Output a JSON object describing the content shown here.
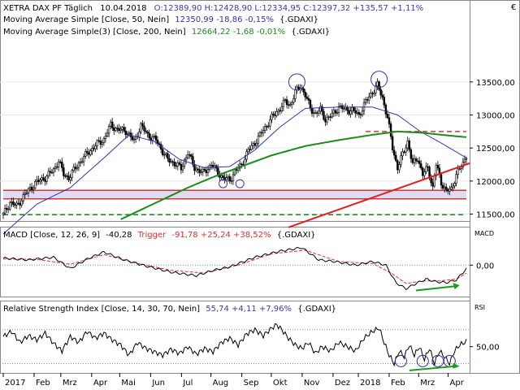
{
  "chart_data": [
    {
      "type": "candlestick",
      "panel": "price",
      "header": {
        "title": "XETRA DAX PF Täglich",
        "date": "10.04.2018",
        "ohlc": "O:12389,90 H:12428,90 L:12334,95 C:12397,32 +135,57 +1,11%"
      },
      "indicators": [
        {
          "label": "Moving Average Simple [Close, 50, Nein]",
          "values": "12350,99 -18,86 -0,15%",
          "source": "{.GDAXI}",
          "color": "#3333aa"
        },
        {
          "label": "Moving Average Simple(3) [Close, 200, Nein]",
          "values": "12664,22 -1,68 -0,01%",
          "source": "{.GDAXI}",
          "color": "#1a8c1a"
        }
      ],
      "y_ticks": [
        "13500,00",
        "13000,00",
        "12500,00",
        "12000,00",
        "11500,00"
      ],
      "y_tick_values": [
        13500,
        13000,
        12500,
        12000,
        11500
      ],
      "ylim": [
        11420,
        14150
      ],
      "close_anchors": [
        [
          0,
          11490
        ],
        [
          4,
          11680
        ],
        [
          8,
          11620
        ],
        [
          13,
          11800
        ],
        [
          19,
          11970
        ],
        [
          25,
          12050
        ],
        [
          30,
          12170
        ],
        [
          33,
          12310
        ],
        [
          36,
          12100
        ],
        [
          39,
          12050
        ],
        [
          45,
          12270
        ],
        [
          50,
          12420
        ],
        [
          56,
          12560
        ],
        [
          60,
          12630
        ],
        [
          64,
          12850
        ],
        [
          68,
          12780
        ],
        [
          73,
          12760
        ],
        [
          78,
          12600
        ],
        [
          82,
          12840
        ],
        [
          86,
          12700
        ],
        [
          91,
          12620
        ],
        [
          95,
          12450
        ],
        [
          98,
          12320
        ],
        [
          102,
          12270
        ],
        [
          106,
          12190
        ],
        [
          110,
          12430
        ],
        [
          114,
          12200
        ],
        [
          119,
          12120
        ],
        [
          124,
          12250
        ],
        [
          128,
          12130
        ],
        [
          131,
          12040
        ],
        [
          135,
          12020
        ],
        [
          138,
          12140
        ],
        [
          142,
          12250
        ],
        [
          146,
          12460
        ],
        [
          150,
          12580
        ],
        [
          155,
          12770
        ],
        [
          160,
          12960
        ],
        [
          164,
          13070
        ],
        [
          168,
          13200
        ],
        [
          171,
          13150
        ],
        [
          174,
          13340
        ],
        [
          177,
          13440
        ],
        [
          180,
          13300
        ],
        [
          183,
          13100
        ],
        [
          186,
          13020
        ],
        [
          189,
          13080
        ],
        [
          192,
          12930
        ],
        [
          196,
          13000
        ],
        [
          200,
          13120
        ],
        [
          204,
          13080
        ],
        [
          208,
          13070
        ],
        [
          212,
          13000
        ],
        [
          216,
          13200
        ],
        [
          220,
          13350
        ],
        [
          223,
          13450
        ],
        [
          226,
          13260
        ],
        [
          229,
          12960
        ],
        [
          232,
          12500
        ],
        [
          235,
          12200
        ],
        [
          238,
          12400
        ],
        [
          241,
          12600
        ],
        [
          244,
          12250
        ],
        [
          247,
          12350
        ],
        [
          250,
          12100
        ],
        [
          253,
          12200
        ],
        [
          256,
          11900
        ],
        [
          258,
          12250
        ],
        [
          261,
          11980
        ],
        [
          264,
          11850
        ],
        [
          267,
          11870
        ],
        [
          270,
          12100
        ],
        [
          274,
          12262
        ],
        [
          276,
          12397
        ]
      ],
      "sma50": [
        [
          0,
          11200
        ],
        [
          20,
          11650
        ],
        [
          40,
          11900
        ],
        [
          60,
          12350
        ],
        [
          75,
          12700
        ],
        [
          90,
          12600
        ],
        [
          105,
          12330
        ],
        [
          120,
          12200
        ],
        [
          135,
          12220
        ],
        [
          150,
          12470
        ],
        [
          165,
          12820
        ],
        [
          180,
          13100
        ],
        [
          200,
          13120
        ],
        [
          220,
          13120
        ],
        [
          235,
          13000
        ],
        [
          248,
          12760
        ],
        [
          262,
          12560
        ],
        [
          276,
          12351
        ]
      ],
      "sma200": [
        [
          70,
          11420
        ],
        [
          90,
          11660
        ],
        [
          110,
          11900
        ],
        [
          125,
          12060
        ],
        [
          145,
          12250
        ],
        [
          160,
          12390
        ],
        [
          180,
          12530
        ],
        [
          200,
          12620
        ],
        [
          220,
          12700
        ],
        [
          235,
          12750
        ],
        [
          250,
          12730
        ],
        [
          265,
          12690
        ],
        [
          276,
          12664
        ]
      ],
      "horizontal_lines": [
        {
          "y": 12750,
          "style": "dashed",
          "color": "#e03030"
        },
        {
          "y": 11860,
          "style": "solid",
          "color": "#e03030"
        },
        {
          "y": 11730,
          "style": "solid",
          "color": "#e03030"
        },
        {
          "y": 11490,
          "style": "dashed",
          "color": "#1a8c1a"
        }
      ],
      "support_band": [
        11730,
        11860
      ],
      "trendline": [
        [
          170,
          11300
        ],
        [
          285,
          12270
        ]
      ]
    },
    {
      "type": "line",
      "panel": "macd",
      "label": "MACD [Close, 12, 26, 9]",
      "value": "-40,28",
      "trigger_label": "Trigger",
      "trigger_values": "-91,78 +25,24 +38,52%",
      "source": "{.GDAXI}",
      "axis_title": "MACD",
      "y_ticks": [
        "0,00"
      ],
      "ylim": [
        -350,
        300
      ],
      "macd": [
        [
          0,
          80
        ],
        [
          15,
          60
        ],
        [
          30,
          90
        ],
        [
          40,
          -40
        ],
        [
          50,
          70
        ],
        [
          60,
          150
        ],
        [
          72,
          60
        ],
        [
          85,
          -10
        ],
        [
          100,
          -80
        ],
        [
          115,
          -120
        ],
        [
          125,
          -60
        ],
        [
          135,
          -20
        ],
        [
          150,
          90
        ],
        [
          165,
          160
        ],
        [
          178,
          200
        ],
        [
          188,
          60
        ],
        [
          198,
          40
        ],
        [
          210,
          0
        ],
        [
          220,
          40
        ],
        [
          228,
          0
        ],
        [
          234,
          -200
        ],
        [
          240,
          -270
        ],
        [
          246,
          -210
        ],
        [
          252,
          -160
        ],
        [
          258,
          -190
        ],
        [
          264,
          -200
        ],
        [
          270,
          -170
        ],
        [
          276,
          -40
        ]
      ],
      "trigger": [
        [
          0,
          70
        ],
        [
          20,
          65
        ],
        [
          40,
          10
        ],
        [
          60,
          120
        ],
        [
          80,
          20
        ],
        [
          100,
          -60
        ],
        [
          120,
          -90
        ],
        [
          140,
          0
        ],
        [
          160,
          130
        ],
        [
          180,
          170
        ],
        [
          200,
          40
        ],
        [
          220,
          20
        ],
        [
          232,
          -100
        ],
        [
          240,
          -210
        ],
        [
          250,
          -180
        ],
        [
          260,
          -180
        ],
        [
          270,
          -160
        ],
        [
          276,
          -92
        ]
      ],
      "divergence_arrow": [
        [
          246,
          -290
        ],
        [
          270,
          -240
        ]
      ]
    },
    {
      "type": "line",
      "panel": "rsi",
      "label": "Relative Strength Index [Close, 14, 30, 70, Nein]",
      "values": "55,74 +4,11 +7,96%",
      "source": "{.GDAXI}",
      "axis_title": "RSI",
      "y_ticks": [
        "50,00"
      ],
      "ylim": [
        20,
        88
      ],
      "levels": [
        30,
        70
      ],
      "rsi": [
        [
          0,
          62
        ],
        [
          5,
          68
        ],
        [
          10,
          55
        ],
        [
          15,
          63
        ],
        [
          20,
          58
        ],
        [
          25,
          66
        ],
        [
          30,
          54
        ],
        [
          35,
          45
        ],
        [
          40,
          62
        ],
        [
          45,
          55
        ],
        [
          50,
          68
        ],
        [
          55,
          60
        ],
        [
          60,
          66
        ],
        [
          65,
          58
        ],
        [
          70,
          52
        ],
        [
          75,
          40
        ],
        [
          80,
          55
        ],
        [
          85,
          48
        ],
        [
          90,
          44
        ],
        [
          95,
          40
        ],
        [
          100,
          47
        ],
        [
          105,
          42
        ],
        [
          110,
          50
        ],
        [
          115,
          41
        ],
        [
          120,
          48
        ],
        [
          125,
          44
        ],
        [
          130,
          55
        ],
        [
          135,
          60
        ],
        [
          140,
          52
        ],
        [
          145,
          65
        ],
        [
          150,
          70
        ],
        [
          155,
          63
        ],
        [
          160,
          72
        ],
        [
          163,
          76
        ],
        [
          166,
          70
        ],
        [
          170,
          60
        ],
        [
          174,
          52
        ],
        [
          178,
          48
        ],
        [
          182,
          55
        ],
        [
          186,
          42
        ],
        [
          190,
          50
        ],
        [
          195,
          45
        ],
        [
          200,
          55
        ],
        [
          205,
          50
        ],
        [
          210,
          45
        ],
        [
          215,
          60
        ],
        [
          220,
          68
        ],
        [
          224,
          72
        ],
        [
          227,
          55
        ],
        [
          230,
          40
        ],
        [
          233,
          30
        ],
        [
          236,
          45
        ],
        [
          239,
          38
        ],
        [
          242,
          52
        ],
        [
          245,
          40
        ],
        [
          248,
          50
        ],
        [
          251,
          35
        ],
        [
          254,
          48
        ],
        [
          257,
          30
        ],
        [
          260,
          45
        ],
        [
          263,
          38
        ],
        [
          266,
          30
        ],
        [
          269,
          45
        ],
        [
          272,
          52
        ],
        [
          276,
          56
        ]
      ],
      "divergence_arrow": [
        [
          242,
          22
        ],
        [
          270,
          27
        ]
      ],
      "v_markers": [
        [
          237,
          33
        ],
        [
          250,
          33
        ],
        [
          259,
          33
        ],
        [
          266,
          33
        ]
      ]
    }
  ],
  "x_axis": {
    "labels": [
      "2017",
      "Feb",
      "Mrz",
      "Apr",
      "Mai",
      "Jun",
      "Jul",
      "Aug",
      "Sep",
      "Okt",
      "Nov",
      "Dez",
      "2018",
      "Feb",
      "Mrz",
      "Apr"
    ],
    "label_index": [
      0,
      22,
      41,
      63,
      83,
      105,
      127,
      148,
      170,
      191,
      213,
      235,
      253,
      275,
      296,
      317
    ]
  }
}
